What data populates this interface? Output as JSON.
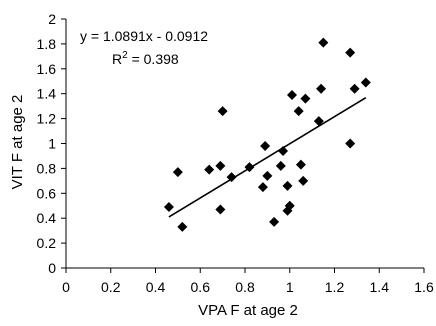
{
  "chart_data": {
    "type": "scatter",
    "xlabel": "VPA  F at age 2",
    "ylabel": "VIT F at age 2",
    "xlim": [
      0,
      1.6
    ],
    "ylim": [
      0,
      2
    ],
    "x_ticks": [
      "0",
      "0.2",
      "0.4",
      "0.6",
      "0.8",
      "1",
      "1.2",
      "1.4",
      "1.6"
    ],
    "y_ticks": [
      "0",
      "0.2",
      "0.4",
      "0.6",
      "0.8",
      "1",
      "1.2",
      "1.4",
      "1.6",
      "1.8",
      "2"
    ],
    "grid": false,
    "marker": "diamond",
    "marker_color": "#000000",
    "series": [
      {
        "points": [
          [
            0.46,
            0.49
          ],
          [
            0.5,
            0.77
          ],
          [
            0.52,
            0.33
          ],
          [
            0.64,
            0.79
          ],
          [
            0.69,
            0.47
          ],
          [
            0.69,
            0.82
          ],
          [
            0.7,
            1.26
          ],
          [
            0.74,
            0.73
          ],
          [
            0.82,
            0.81
          ],
          [
            0.88,
            0.65
          ],
          [
            0.89,
            0.98
          ],
          [
            0.9,
            0.74
          ],
          [
            0.93,
            0.37
          ],
          [
            0.96,
            0.82
          ],
          [
            0.97,
            0.94
          ],
          [
            0.99,
            0.46
          ],
          [
            0.99,
            0.66
          ],
          [
            1.0,
            0.5
          ],
          [
            1.01,
            1.39
          ],
          [
            1.04,
            1.26
          ],
          [
            1.05,
            0.83
          ],
          [
            1.06,
            0.7
          ],
          [
            1.07,
            1.36
          ],
          [
            1.13,
            1.18
          ],
          [
            1.14,
            1.44
          ],
          [
            1.15,
            1.81
          ],
          [
            1.27,
            1.73
          ],
          [
            1.27,
            1.0
          ],
          [
            1.29,
            1.44
          ],
          [
            1.34,
            1.49
          ]
        ]
      }
    ],
    "trendline": {
      "slope": 1.0891,
      "intercept": -0.0912,
      "x_range": [
        0.46,
        1.34
      ],
      "color": "#000000"
    },
    "annotations": {
      "equation": "y = 1.0891x - 0.0912",
      "r2_label": "R",
      "r2_sup": "2",
      "r2_value": " = 0.398"
    }
  }
}
